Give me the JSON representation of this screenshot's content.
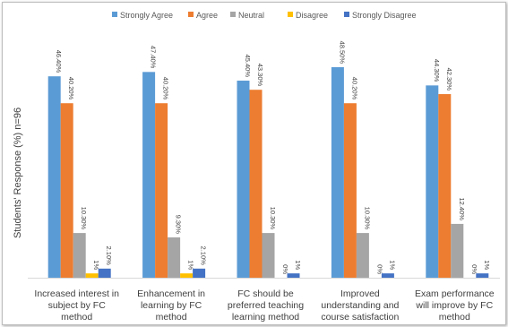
{
  "chart_data": {
    "type": "bar",
    "ylabel": "Students' Response (%)  n=96",
    "categories": [
      [
        "Increased interest in",
        "subject by FC",
        "method"
      ],
      [
        "Enhancement in",
        "learning by FC",
        "method"
      ],
      [
        "FC should be",
        "preferred teaching",
        "learning method"
      ],
      [
        "Improved",
        "understanding and",
        "course satisfaction"
      ],
      [
        "Exam performance",
        "will improve by FC",
        "method"
      ]
    ],
    "series": [
      {
        "name": "Strongly Agree",
        "color": "#5b9bd5",
        "values": [
          46.4,
          47.4,
          45.4,
          48.5,
          44.3
        ],
        "labels": [
          "46.40%",
          "47.40%",
          "45.40%",
          "48.50%",
          "44.30%"
        ]
      },
      {
        "name": "Agree",
        "color": "#ed7d31",
        "values": [
          40.2,
          40.2,
          43.3,
          40.2,
          42.3
        ],
        "labels": [
          "40.20%",
          "40.20%",
          "43.30%",
          "40.20%",
          "42.30%"
        ]
      },
      {
        "name": "Neutral",
        "color": "#a5a5a5",
        "values": [
          10.3,
          9.3,
          10.3,
          10.3,
          12.4
        ],
        "labels": [
          "10.30%",
          "9.30%",
          "10.30%",
          "10.30%",
          "12.40%"
        ]
      },
      {
        "name": "Disagree",
        "color": "#ffc000",
        "values": [
          1,
          1,
          0,
          0,
          0
        ],
        "labels": [
          "1%",
          "1%",
          "0%",
          "0%",
          "0%"
        ]
      },
      {
        "name": "Strongly Disagree",
        "color": "#4472c4",
        "values": [
          2.1,
          2.1,
          1,
          1,
          1
        ],
        "labels": [
          "2.10%",
          "2.10%",
          "1%",
          "1%",
          "1%"
        ]
      }
    ],
    "ylim": [
      0,
      50
    ],
    "legend_position": "top",
    "grid": false,
    "axis_line_color": "#d9d9d9"
  }
}
